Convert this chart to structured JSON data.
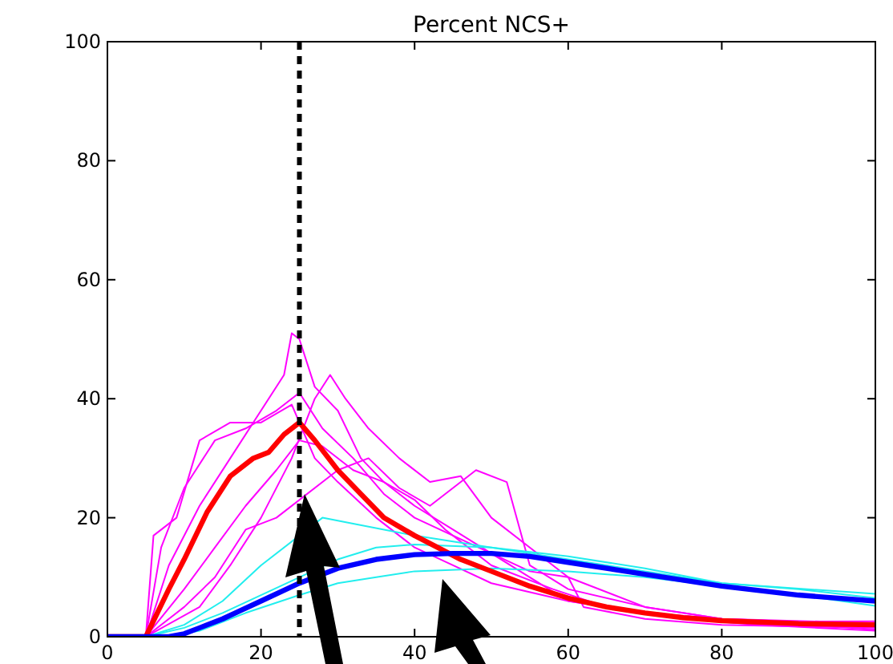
{
  "chart_data": {
    "type": "line",
    "title": "Percent NCS+",
    "xlim": [
      0,
      100
    ],
    "ylim": [
      0,
      100
    ],
    "xticks": [
      0,
      20,
      40,
      60,
      80,
      100
    ],
    "yticks": [
      0,
      20,
      40,
      60,
      80,
      100
    ],
    "series": [
      {
        "color": "#ff00ff",
        "x": [
          0,
          5,
          8,
          12,
          16,
          20,
          23,
          24,
          25,
          27,
          30,
          33,
          36,
          40,
          45,
          50,
          55,
          60,
          70,
          80,
          100
        ],
        "values": [
          0,
          0,
          12,
          22,
          30,
          38,
          44,
          51,
          50,
          42,
          38,
          30,
          26,
          22,
          18,
          14,
          10,
          6,
          4,
          3,
          2.3
        ]
      },
      {
        "color": "#ff00ff",
        "x": [
          0,
          5,
          7,
          10,
          14,
          18,
          22,
          25,
          28,
          32,
          36,
          40,
          45,
          50,
          55,
          60,
          62,
          70,
          80,
          100
        ],
        "values": [
          0,
          0,
          15,
          25,
          33,
          35,
          38,
          41,
          35,
          30,
          24,
          20,
          17,
          14,
          11,
          10,
          5,
          3,
          2,
          1.5
        ]
      },
      {
        "color": "#ff00ff",
        "x": [
          0,
          5,
          10,
          14,
          18,
          22,
          25,
          28,
          32,
          36,
          40,
          44,
          50,
          58,
          65,
          75,
          85,
          100
        ],
        "values": [
          0,
          0,
          8,
          15,
          22,
          28,
          33,
          32,
          28,
          26,
          23,
          18,
          12,
          8,
          5,
          3,
          2,
          1
        ]
      },
      {
        "color": "#ff00ff",
        "x": [
          0,
          5,
          12,
          16,
          20,
          24,
          27,
          29,
          31,
          34,
          38,
          42,
          46,
          50,
          55,
          60,
          70,
          80,
          100
        ],
        "values": [
          0,
          0,
          5,
          12,
          20,
          30,
          40,
          44,
          40,
          35,
          30,
          26,
          27,
          20,
          15,
          10,
          5,
          3,
          2
        ]
      },
      {
        "color": "#ff00ff",
        "x": [
          0,
          5,
          6,
          9,
          12,
          16,
          20,
          24,
          27,
          30,
          35,
          40,
          45,
          50,
          60,
          70,
          85,
          100
        ],
        "values": [
          0,
          0,
          17,
          20,
          33,
          36,
          36,
          39,
          30,
          26,
          20,
          15,
          12,
          9,
          6,
          4,
          2.5,
          2.6
        ]
      },
      {
        "color": "#ff00ff",
        "x": [
          0,
          5,
          10,
          14,
          18,
          22,
          30,
          34,
          38,
          42,
          48,
          52,
          55,
          60,
          70,
          80,
          100
        ],
        "values": [
          0,
          0,
          5,
          10,
          18,
          20,
          28,
          30,
          25,
          22,
          28,
          26,
          12,
          8,
          5,
          3,
          1.2
        ]
      },
      {
        "color": "#22eeee",
        "x": [
          0,
          5,
          10,
          15,
          20,
          28,
          32,
          40,
          50,
          60,
          70,
          80,
          90,
          100
        ],
        "values": [
          0,
          0,
          2,
          6,
          12,
          20,
          19,
          17,
          15,
          13,
          11,
          9,
          8,
          6.5
        ]
      },
      {
        "color": "#22eeee",
        "x": [
          0,
          8,
          12,
          18,
          25,
          30,
          35,
          40,
          50,
          60,
          70,
          80,
          90,
          100
        ],
        "values": [
          0,
          0,
          1,
          4,
          7,
          9,
          10,
          11,
          11.5,
          11,
          10,
          8.5,
          7,
          5.2
        ]
      },
      {
        "color": "#22eeee",
        "x": [
          0,
          5,
          10,
          15,
          20,
          25,
          30,
          35,
          40,
          50,
          60,
          70,
          80,
          100
        ],
        "values": [
          0,
          0,
          1.5,
          4,
          7,
          10,
          13,
          15,
          15.5,
          15,
          13.5,
          11.5,
          9,
          7.2
        ]
      },
      {
        "color": "#ff0000",
        "x": [
          0,
          5,
          8,
          10,
          13,
          16,
          19,
          21,
          23,
          25,
          27,
          30,
          33,
          36,
          40,
          43,
          46,
          50,
          55,
          60,
          65,
          70,
          75,
          80,
          90,
          100
        ],
        "values": [
          0,
          0,
          8,
          13,
          21,
          27,
          30,
          31,
          34,
          36,
          33,
          28,
          24,
          20,
          17,
          15,
          13,
          11,
          8.5,
          6.5,
          5,
          4,
          3.2,
          2.7,
          2.2,
          2
        ]
      },
      {
        "color": "#0000ff",
        "x": [
          0,
          8,
          10,
          12,
          15,
          20,
          25,
          30,
          35,
          40,
          45,
          50,
          55,
          60,
          70,
          80,
          90,
          100
        ],
        "values": [
          0,
          0,
          0.5,
          1.5,
          3,
          6,
          9,
          11.5,
          13,
          13.8,
          14,
          14,
          13.5,
          12.5,
          10.5,
          8.5,
          7,
          6
        ]
      }
    ],
    "ref_lines": [
      {
        "axis": "x",
        "value": 25,
        "color": "#000000",
        "line_style": "dashed"
      }
    ]
  }
}
